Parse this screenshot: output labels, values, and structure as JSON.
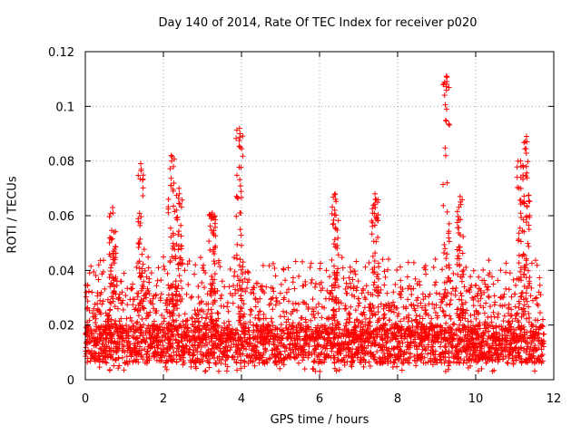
{
  "chart_data": {
    "type": "scatter",
    "title": "Day 140 of 2014, Rate Of TEC Index for receiver p020",
    "xlabel": "GPS time / hours",
    "ylabel": "ROTI / TECUs",
    "xlim": [
      0,
      12
    ],
    "ylim": [
      0,
      0.12
    ],
    "xticks": [
      0,
      2,
      4,
      6,
      8,
      10,
      12
    ],
    "xtick_labels": [
      "0",
      "2",
      "4",
      "6",
      "8",
      "10",
      "12"
    ],
    "yticks": [
      0,
      0.02,
      0.04,
      0.06,
      0.08,
      0.1,
      0.12
    ],
    "ytick_labels": [
      "0",
      "0.02",
      "0.04",
      "0.06",
      "0.08",
      "0.1",
      "0.12"
    ],
    "grid": true,
    "marker": "+",
    "color": "#ff0000",
    "series": [
      {
        "name": "ROTI",
        "x_range": [
          0,
          11.75
        ],
        "baseline_typical": [
          0.006,
          0.02
        ],
        "bursts": [
          {
            "x": 0.7,
            "max": 0.063
          },
          {
            "x": 1.42,
            "max": 0.079
          },
          {
            "x": 2.2,
            "max": 0.082
          },
          {
            "x": 2.4,
            "max": 0.07
          },
          {
            "x": 3.25,
            "max": 0.061
          },
          {
            "x": 3.95,
            "max": 0.092
          },
          {
            "x": 6.4,
            "max": 0.068
          },
          {
            "x": 7.42,
            "max": 0.068
          },
          {
            "x": 9.25,
            "max": 0.111
          },
          {
            "x": 9.6,
            "max": 0.067
          },
          {
            "x": 11.15,
            "max": 0.08
          },
          {
            "x": 11.3,
            "max": 0.089
          }
        ]
      }
    ]
  }
}
